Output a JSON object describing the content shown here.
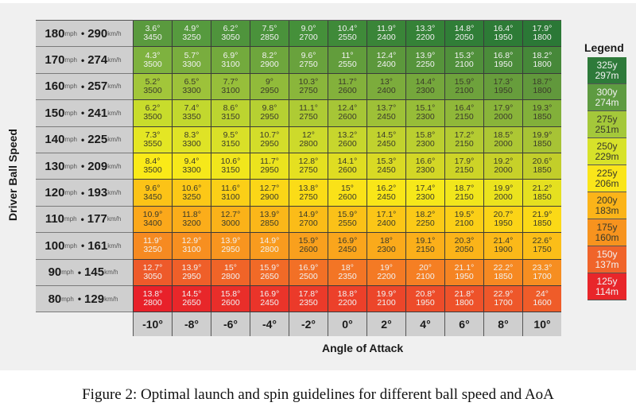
{
  "caption": "Figure 2: Optimal launch and spin guidelines for different ball speed and AoA",
  "axis": {
    "ylabel": "Driver Ball Speed",
    "xlabel": "Angle of Attack"
  },
  "legend": {
    "title": "Legend",
    "items": [
      {
        "yards": "325y",
        "meters": "297m",
        "color": "#2e7a3a",
        "text": "dark"
      },
      {
        "yards": "300y",
        "meters": "274m",
        "color": "#5e9b41",
        "text": "dark"
      },
      {
        "yards": "275y",
        "meters": "251m",
        "color": "#a4c83a",
        "text": "light"
      },
      {
        "yards": "250y",
        "meters": "229m",
        "color": "#d7e22a",
        "text": "light"
      },
      {
        "yards": "225y",
        "meters": "206m",
        "color": "#fae51a",
        "text": "light"
      },
      {
        "yards": "200y",
        "meters": "183m",
        "color": "#fbb419",
        "text": "light"
      },
      {
        "yards": "175y",
        "meters": "160m",
        "color": "#f7931e",
        "text": "light"
      },
      {
        "yards": "150y",
        "meters": "137m",
        "color": "#f0642a",
        "text": "dark"
      },
      {
        "yards": "125y",
        "meters": "114m",
        "color": "#e8262a",
        "text": "dark"
      }
    ]
  },
  "chart_data": {
    "type": "table",
    "title": "Optimal launch and spin guidelines for different ball speed and AoA",
    "xlabel": "Angle of Attack",
    "ylabel": "Driver Ball Speed",
    "columns": [
      "-10°",
      "-8°",
      "-6°",
      "-4°",
      "-2°",
      "0°",
      "2°",
      "4°",
      "6°",
      "8°",
      "10°"
    ],
    "rows": [
      {
        "mph": "180",
        "kmh": "290",
        "launch": [
          "3.6°",
          "4.9°",
          "6.2°",
          "7.5°",
          "9.0°",
          "10.4°",
          "11.9°",
          "13.3°",
          "14.8°",
          "16.4°",
          "17.9°"
        ],
        "spin": [
          "3450",
          "3250",
          "3050",
          "2850",
          "2700",
          "2550",
          "2400",
          "2200",
          "2050",
          "1950",
          "1800"
        ]
      },
      {
        "mph": "170",
        "kmh": "274",
        "launch": [
          "4.3°",
          "5.7°",
          "6.9°",
          "8.2°",
          "9.6°",
          "11°",
          "12.4°",
          "13.9°",
          "15.3°",
          "16.8°",
          "18.2°"
        ],
        "spin": [
          "3500",
          "3300",
          "3100",
          "2900",
          "2750",
          "2550",
          "2400",
          "2250",
          "2100",
          "1950",
          "1800"
        ]
      },
      {
        "mph": "160",
        "kmh": "257",
        "launch": [
          "5.2°",
          "6.5°",
          "7.7°",
          "9°",
          "10.3°",
          "11.7°",
          "13°",
          "14.4°",
          "15.9°",
          "17.3°",
          "18.7°"
        ],
        "spin": [
          "3500",
          "3300",
          "3100",
          "2950",
          "2750",
          "2600",
          "2400",
          "2300",
          "2100",
          "1950",
          "1800"
        ]
      },
      {
        "mph": "150",
        "kmh": "241",
        "launch": [
          "6.2°",
          "7.4°",
          "8.6°",
          "9.8°",
          "11.1°",
          "12.4°",
          "13.7°",
          "15.1°",
          "16.4°",
          "17.9°",
          "19.3°"
        ],
        "spin": [
          "3500",
          "3350",
          "3150",
          "2950",
          "2750",
          "2600",
          "2450",
          "2300",
          "2150",
          "2000",
          "1850"
        ]
      },
      {
        "mph": "140",
        "kmh": "225",
        "launch": [
          "7.3°",
          "8.3°",
          "9.5°",
          "10.7°",
          "12°",
          "13.2°",
          "14.5°",
          "15.8°",
          "17.2°",
          "18.5°",
          "19.9°"
        ],
        "spin": [
          "3550",
          "3300",
          "3150",
          "2950",
          "2800",
          "2600",
          "2450",
          "2300",
          "2150",
          "2000",
          "1850"
        ]
      },
      {
        "mph": "130",
        "kmh": "209",
        "launch": [
          "8.4°",
          "9.4°",
          "10.6°",
          "11.7°",
          "12.8°",
          "14.1°",
          "15.3°",
          "16.6°",
          "17.9°",
          "19.2°",
          "20.6°"
        ],
        "spin": [
          "3500",
          "3300",
          "3150",
          "2950",
          "2750",
          "2600",
          "2450",
          "2300",
          "2150",
          "2000",
          "1850"
        ]
      },
      {
        "mph": "120",
        "kmh": "193",
        "launch": [
          "9.6°",
          "10.6°",
          "11.6°",
          "12.7°",
          "13.8°",
          "15°",
          "16.2°",
          "17.4°",
          "18.7°",
          "19.9°",
          "21.2°"
        ],
        "spin": [
          "3450",
          "3250",
          "3100",
          "2900",
          "2750",
          "2600",
          "2450",
          "2300",
          "2150",
          "2000",
          "1850"
        ]
      },
      {
        "mph": "110",
        "kmh": "177",
        "launch": [
          "10.9°",
          "11.8°",
          "12.7°",
          "13.9°",
          "14.9°",
          "15.9°",
          "17.1°",
          "18.2°",
          "19.5°",
          "20.7°",
          "21.9°"
        ],
        "spin": [
          "3400",
          "3200",
          "3000",
          "2850",
          "2700",
          "2550",
          "2400",
          "2250",
          "2100",
          "1950",
          "1850"
        ]
      },
      {
        "mph": "100",
        "kmh": "161",
        "launch": [
          "11.9°",
          "12.9°",
          "13.9°",
          "14.9°",
          "15.9°",
          "16.9°",
          "18°",
          "19.1°",
          "20.3°",
          "21.4°",
          "22.6°"
        ],
        "spin": [
          "3250",
          "3100",
          "2950",
          "2800",
          "2600",
          "2450",
          "2300",
          "2150",
          "2050",
          "1900",
          "1750"
        ]
      },
      {
        "mph": "90",
        "kmh": "145",
        "launch": [
          "12.7°",
          "13.9°",
          "15°",
          "15.9°",
          "16.9°",
          "18°",
          "19°",
          "20°",
          "21.1°",
          "22.2°",
          "23.3°"
        ],
        "spin": [
          "3050",
          "2950",
          "2800",
          "2650",
          "2500",
          "2350",
          "2200",
          "2100",
          "1950",
          "1850",
          "1700"
        ]
      },
      {
        "mph": "80",
        "kmh": "129",
        "launch": [
          "13.8°",
          "14.5°",
          "15.8°",
          "16.9°",
          "17.8°",
          "18.8°",
          "19.9°",
          "20.8°",
          "21.8°",
          "22.9°",
          "24°"
        ],
        "spin": [
          "2800",
          "2650",
          "2600",
          "2450",
          "2350",
          "2200",
          "2100",
          "1950",
          "1800",
          "1700",
          "1600"
        ]
      }
    ],
    "row_colors": [
      [
        "#5a9a3e",
        "#569a3e",
        "#4f943c",
        "#4a923b",
        "#45903a",
        "#3f8a39",
        "#3a8538",
        "#358237",
        "#307e37",
        "#2d7b36",
        "#2b7836"
      ],
      [
        "#7eb23f",
        "#79ad3e",
        "#73aa3d",
        "#6ea63d",
        "#69a23d",
        "#629d3c",
        "#5c983c",
        "#56943b",
        "#50903b",
        "#4b8c3a",
        "#468839"
      ],
      [
        "#a2c63a",
        "#9dc23a",
        "#97bf3a",
        "#91bb3a",
        "#8ab63b",
        "#83b13b",
        "#7cac3c",
        "#75a73c",
        "#6ea23c",
        "#679d3c",
        "#61983c"
      ],
      [
        "#c8dc2c",
        "#c2d82e",
        "#bcd430",
        "#b6d032",
        "#aecb34",
        "#a6c636",
        "#9ec137",
        "#97bd38",
        "#90b839",
        "#89b43a",
        "#82b03a"
      ],
      [
        "#e4e624",
        "#dfe326",
        "#d9e028",
        "#d3dd2a",
        "#cdda2b",
        "#c7d62d",
        "#c1d22e",
        "#bbcf30",
        "#b4cb32",
        "#adc734",
        "#a7c335"
      ],
      [
        "#faea18",
        "#f6e81a",
        "#f1e61c",
        "#ebe31e",
        "#e5e020",
        "#dfdd22",
        "#d9da24",
        "#d3d726",
        "#cdd427",
        "#c7d129",
        "#c2ce2a"
      ],
      [
        "#fcc317",
        "#fcc817",
        "#fbcf17",
        "#fbd617",
        "#fbdc17",
        "#fae218",
        "#f9e618",
        "#f6e81a",
        "#f1e61c",
        "#ebe31e",
        "#e5e020"
      ],
      [
        "#fba81b",
        "#fbad1a",
        "#fbb219",
        "#fbb719",
        "#fbbc18",
        "#fbc118",
        "#fbc617",
        "#fbca17",
        "#fbcf17",
        "#fbd417",
        "#fbd917"
      ],
      [
        "#f68a21",
        "#f78f20",
        "#f8951f",
        "#f99b1e",
        "#f9a01d",
        "#faa51c",
        "#faaa1b",
        "#fbaf1a",
        "#fbb419",
        "#fbb919",
        "#fbbe18"
      ],
      [
        "#ee5a2a",
        "#ef5f29",
        "#f06428",
        "#f16a27",
        "#f27026",
        "#f37525",
        "#f47a24",
        "#f57f23",
        "#f58422",
        "#f68922",
        "#f68e21"
      ],
      [
        "#e8212a",
        "#e8272a",
        "#e92e2a",
        "#ea342a",
        "#eb3a2a",
        "#ec402a",
        "#ec462a",
        "#ed4c2a",
        "#ee522a",
        "#ee572a",
        "#ef5c29"
      ]
    ],
    "row_text": [
      "dark",
      "dark",
      "light",
      "light",
      "light",
      "light",
      "light",
      "light",
      "mixed",
      "dark",
      "dark"
    ]
  }
}
